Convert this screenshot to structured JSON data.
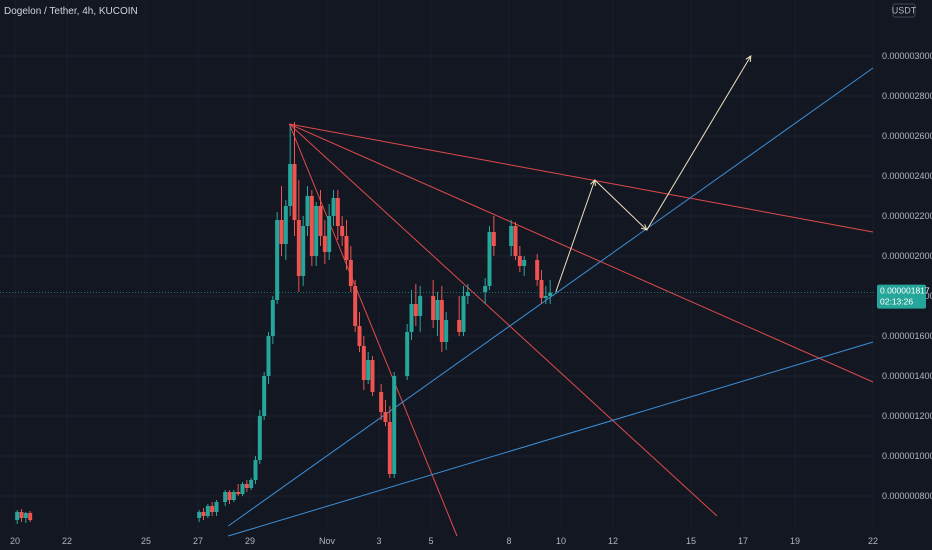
{
  "header": {
    "symbol_title": "Dogelon / Tether, 4h, KUCOIN",
    "currency_label": "USDT"
  },
  "price_badge": {
    "price": "0.000001817",
    "countdown": "02:13:26"
  },
  "colors": {
    "background": "#131722",
    "up": "#26a69a",
    "down": "#ef5350",
    "trend_red": "#e04a4a",
    "trend_blue": "#3d8fd6",
    "arrow": "#f0e2c0",
    "text": "#b2b5be",
    "badge": "#26a69a"
  },
  "chart_data": {
    "type": "candlestick",
    "title": "Dogelon / Tether, 4h, KUCOIN",
    "y_unit": "USDT",
    "ylim": [
      6.5e-07,
      3.15e-06
    ],
    "x_ticks": [
      "20",
      "22",
      "25",
      "27",
      "29",
      "Nov",
      "3",
      "5",
      "8",
      "10",
      "12",
      "15",
      "17",
      "19",
      "22"
    ],
    "y_ticks": [
      "0.000003000",
      "0.000002800",
      "0.000002600",
      "0.000002400",
      "0.000002200",
      "0.000002000",
      "0.000001800",
      "0.000001600",
      "0.000001400",
      "0.000001200",
      "0.000001000",
      "0.000000800"
    ],
    "last_price": 1.817e-06,
    "candles": [
      {
        "t": "Oct 20",
        "o": 6.8e-07,
        "h": 7.3e-07,
        "l": 6.6e-07,
        "c": 7.2e-07
      },
      {
        "t": "Oct 20",
        "o": 7.2e-07,
        "h": 7.35e-07,
        "l": 6.7e-07,
        "c": 6.9e-07
      },
      {
        "t": "Oct 20",
        "o": 6.9e-07,
        "h": 7.2e-07,
        "l": 6.65e-07,
        "c": 7.15e-07
      },
      {
        "t": "Oct 20",
        "o": 7.15e-07,
        "h": 7.25e-07,
        "l": 6.7e-07,
        "c": 6.8e-07
      },
      {
        "t": "Oct 27",
        "o": 6.9e-07,
        "h": 7.3e-07,
        "l": 6.7e-07,
        "c": 7.2e-07
      },
      {
        "t": "Oct 27",
        "o": 7.2e-07,
        "h": 7.4e-07,
        "l": 6.8e-07,
        "c": 7e-07
      },
      {
        "t": "Oct 27",
        "o": 7e-07,
        "h": 7.6e-07,
        "l": 6.9e-07,
        "c": 7.5e-07
      },
      {
        "t": "Oct 27",
        "o": 7.5e-07,
        "h": 7.7e-07,
        "l": 7e-07,
        "c": 7.2e-07
      },
      {
        "t": "Oct 27",
        "o": 7.2e-07,
        "h": 7.8e-07,
        "l": 7e-07,
        "c": 7.7e-07
      },
      {
        "t": "Oct 28",
        "o": 7.7e-07,
        "h": 8.3e-07,
        "l": 7.5e-07,
        "c": 8.2e-07
      },
      {
        "t": "Oct 28",
        "o": 8.2e-07,
        "h": 8.3e-07,
        "l": 7.6e-07,
        "c": 7.8e-07
      },
      {
        "t": "Oct 28",
        "o": 7.8e-07,
        "h": 8.3e-07,
        "l": 7.7e-07,
        "c": 8.2e-07
      },
      {
        "t": "Oct 28",
        "o": 8.2e-07,
        "h": 8.6e-07,
        "l": 8e-07,
        "c": 8.1e-07
      },
      {
        "t": "Oct 28",
        "o": 8.1e-07,
        "h": 8.7e-07,
        "l": 8e-07,
        "c": 8.6e-07
      },
      {
        "t": "Oct 28",
        "o": 8.6e-07,
        "h": 8.8e-07,
        "l": 8.2e-07,
        "c": 8.4e-07
      },
      {
        "t": "Oct 29",
        "o": 8.4e-07,
        "h": 8.9e-07,
        "l": 8.3e-07,
        "c": 8.8e-07
      },
      {
        "t": "Oct 29",
        "o": 8.8e-07,
        "h": 1e-06,
        "l": 8.6e-07,
        "c": 9.8e-07
      },
      {
        "t": "Oct 29",
        "o": 9.8e-07,
        "h": 1.23e-06,
        "l": 9.6e-07,
        "c": 1.2e-06
      },
      {
        "t": "Oct 29",
        "o": 1.2e-06,
        "h": 1.42e-06,
        "l": 1.18e-06,
        "c": 1.4e-06
      },
      {
        "t": "Oct 29",
        "o": 1.4e-06,
        "h": 1.62e-06,
        "l": 1.36e-06,
        "c": 1.6e-06
      },
      {
        "t": "Oct 29",
        "o": 1.6e-06,
        "h": 1.8e-06,
        "l": 1.56e-06,
        "c": 1.78e-06
      },
      {
        "t": "Oct 30",
        "o": 1.78e-06,
        "h": 2.22e-06,
        "l": 1.76e-06,
        "c": 2.18e-06
      },
      {
        "t": "Oct 30",
        "o": 2.18e-06,
        "h": 2.35e-06,
        "l": 2e-06,
        "c": 2.06e-06
      },
      {
        "t": "Oct 30",
        "o": 2.06e-06,
        "h": 2.28e-06,
        "l": 1.98e-06,
        "c": 2.25e-06
      },
      {
        "t": "Oct 30",
        "o": 2.25e-06,
        "h": 2.65e-06,
        "l": 2.2e-06,
        "c": 2.46e-06
      },
      {
        "t": "Oct 30",
        "o": 2.46e-06,
        "h": 2.67e-06,
        "l": 2.1e-06,
        "c": 2.18e-06
      },
      {
        "t": "Oct 30",
        "o": 2.18e-06,
        "h": 2.38e-06,
        "l": 1.82e-06,
        "c": 1.9e-06
      },
      {
        "t": "Oct 31",
        "o": 1.9e-06,
        "h": 2.2e-06,
        "l": 1.85e-06,
        "c": 2.15e-06
      },
      {
        "t": "Oct 31",
        "o": 2.15e-06,
        "h": 2.35e-06,
        "l": 2.1e-06,
        "c": 2.3e-06
      },
      {
        "t": "Oct 31",
        "o": 2.3e-06,
        "h": 2.33e-06,
        "l": 1.95e-06,
        "c": 2e-06
      },
      {
        "t": "Oct 31",
        "o": 2e-06,
        "h": 2.27e-06,
        "l": 1.95e-06,
        "c": 2.25e-06
      },
      {
        "t": "Oct 31",
        "o": 2.25e-06,
        "h": 2.33e-06,
        "l": 2.05e-06,
        "c": 2.1e-06
      },
      {
        "t": "Oct 31",
        "o": 2.1e-06,
        "h": 2.18e-06,
        "l": 1.96e-06,
        "c": 2.02e-06
      },
      {
        "t": "Nov 1",
        "o": 2.02e-06,
        "h": 2.26e-06,
        "l": 1.98e-06,
        "c": 2.2e-06
      },
      {
        "t": "Nov 1",
        "o": 2.2e-06,
        "h": 2.33e-06,
        "l": 2.15e-06,
        "c": 2.29e-06
      },
      {
        "t": "Nov 1",
        "o": 2.29e-06,
        "h": 2.33e-06,
        "l": 2.08e-06,
        "c": 2.15e-06
      },
      {
        "t": "Nov 1",
        "o": 2.15e-06,
        "h": 2.2e-06,
        "l": 2.05e-06,
        "c": 2.1e-06
      },
      {
        "t": "Nov 1",
        "o": 2.1e-06,
        "h": 2.18e-06,
        "l": 1.93e-06,
        "c": 1.98e-06
      },
      {
        "t": "Nov 1",
        "o": 1.98e-06,
        "h": 2.05e-06,
        "l": 1.82e-06,
        "c": 1.85e-06
      },
      {
        "t": "Nov 2",
        "o": 1.85e-06,
        "h": 1.88e-06,
        "l": 1.62e-06,
        "c": 1.65e-06
      },
      {
        "t": "Nov 2",
        "o": 1.65e-06,
        "h": 1.72e-06,
        "l": 1.52e-06,
        "c": 1.55e-06
      },
      {
        "t": "Nov 2",
        "o": 1.55e-06,
        "h": 1.6e-06,
        "l": 1.33e-06,
        "c": 1.38e-06
      },
      {
        "t": "Nov 2",
        "o": 1.38e-06,
        "h": 1.52e-06,
        "l": 1.36e-06,
        "c": 1.48e-06
      },
      {
        "t": "Nov 2",
        "o": 1.48e-06,
        "h": 1.5e-06,
        "l": 1.3e-06,
        "c": 1.32e-06
      },
      {
        "t": "Nov 3",
        "o": 1.32e-06,
        "h": 1.36e-06,
        "l": 1.18e-06,
        "c": 1.22e-06
      },
      {
        "t": "Nov 3",
        "o": 1.22e-06,
        "h": 1.28e-06,
        "l": 1.15e-06,
        "c": 1.17e-06
      },
      {
        "t": "Nov 3",
        "o": 1.17e-06,
        "h": 1.25e-06,
        "l": 8.9e-07,
        "c": 9.1e-07
      },
      {
        "t": "Nov 3",
        "o": 9.1e-07,
        "h": 1.42e-06,
        "l": 8.9e-07,
        "c": 1.4e-06
      },
      {
        "t": "Nov 4",
        "o": 1.4e-06,
        "h": 1.66e-06,
        "l": 1.38e-06,
        "c": 1.62e-06
      },
      {
        "t": "Nov 4",
        "o": 1.62e-06,
        "h": 1.83e-06,
        "l": 1.58e-06,
        "c": 1.76e-06
      },
      {
        "t": "Nov 4",
        "o": 1.76e-06,
        "h": 1.86e-06,
        "l": 1.65e-06,
        "c": 1.7e-06
      },
      {
        "t": "Nov 4",
        "o": 1.7e-06,
        "h": 1.85e-06,
        "l": 1.62e-06,
        "c": 1.8e-06
      },
      {
        "t": "Nov 5",
        "o": 1.8e-06,
        "h": 1.88e-06,
        "l": 1.64e-06,
        "c": 1.68e-06
      },
      {
        "t": "Nov 5",
        "o": 1.68e-06,
        "h": 1.82e-06,
        "l": 1.6e-06,
        "c": 1.78e-06
      },
      {
        "t": "Nov 5",
        "o": 1.78e-06,
        "h": 1.85e-06,
        "l": 1.52e-06,
        "c": 1.57e-06
      },
      {
        "t": "Nov 5",
        "o": 1.57e-06,
        "h": 1.72e-06,
        "l": 1.53e-06,
        "c": 1.68e-06
      },
      {
        "t": "Nov 6",
        "o": 1.68e-06,
        "h": 1.8e-06,
        "l": 1.6e-06,
        "c": 1.62e-06
      },
      {
        "t": "Nov 6",
        "o": 1.62e-06,
        "h": 1.85e-06,
        "l": 1.6e-06,
        "c": 1.8e-06
      },
      {
        "t": "Nov 6",
        "o": 1.8e-06,
        "h": 1.86e-06,
        "l": 1.76e-06,
        "c": 1.82e-06
      },
      {
        "t": "Nov 7",
        "o": 1.82e-06,
        "h": 1.89e-06,
        "l": 1.76e-06,
        "c": 1.85e-06
      },
      {
        "t": "Nov 7",
        "o": 1.85e-06,
        "h": 2.15e-06,
        "l": 1.83e-06,
        "c": 2.12e-06
      },
      {
        "t": "Nov 7",
        "o": 2.12e-06,
        "h": 2.2e-06,
        "l": 2e-06,
        "c": 2.05e-06
      },
      {
        "t": "Nov 8",
        "o": 2.05e-06,
        "h": 2.18e-06,
        "l": 2e-06,
        "c": 2.15e-06
      },
      {
        "t": "Nov 8",
        "o": 2.15e-06,
        "h": 2.17e-06,
        "l": 1.98e-06,
        "c": 2e-06
      },
      {
        "t": "Nov 8",
        "o": 2e-06,
        "h": 2.05e-06,
        "l": 1.92e-06,
        "c": 1.95e-06
      },
      {
        "t": "Nov 8",
        "o": 1.95e-06,
        "h": 2e-06,
        "l": 1.9e-06,
        "c": 1.98e-06
      },
      {
        "t": "Nov 9",
        "o": 1.98e-06,
        "h": 2.01e-06,
        "l": 1.85e-06,
        "c": 1.88e-06
      },
      {
        "t": "Nov 9",
        "o": 1.88e-06,
        "h": 1.93e-06,
        "l": 1.76e-06,
        "c": 1.79e-06
      },
      {
        "t": "Nov 9",
        "o": 1.79e-06,
        "h": 1.85e-06,
        "l": 1.76e-06,
        "c": 1.8e-06
      },
      {
        "t": "Nov 9",
        "o": 1.8e-06,
        "h": 1.88e-06,
        "l": 1.76e-06,
        "c": 1.817e-06
      }
    ],
    "trend_lines": [
      {
        "name": "resistance-upper",
        "color": "red",
        "p1": [
          "Oct 30",
          2.66e-06
        ],
        "p2": [
          "Nov 22",
          2.12e-06
        ]
      },
      {
        "name": "fan-1",
        "color": "red",
        "p1": [
          "Oct 30",
          2.66e-06
        ],
        "p2": [
          "Nov 22",
          1.37e-06
        ]
      },
      {
        "name": "fan-2",
        "color": "red",
        "p1": [
          "Oct 30",
          2.66e-06
        ],
        "p2": [
          "Nov 16",
          7e-07
        ]
      },
      {
        "name": "fan-3",
        "color": "red",
        "p1": [
          "Oct 30",
          2.66e-06
        ],
        "p2": [
          "Nov 6",
          6e-07
        ]
      },
      {
        "name": "support-upper",
        "color": "blue",
        "p1": [
          "Oct 28",
          6.5e-07
        ],
        "p2": [
          "Nov 22",
          2.94e-06
        ]
      },
      {
        "name": "support-lower",
        "color": "blue",
        "p1": [
          "Oct 28",
          6e-07
        ],
        "p2": [
          "Nov 22",
          1.57e-06
        ]
      }
    ],
    "projection_path": [
      [
        "Nov 9",
        1.82e-06
      ],
      [
        "Nov 11",
        2.38e-06
      ],
      [
        "Nov 13",
        2.13e-06
      ],
      [
        "Nov 17",
        3e-06
      ]
    ]
  }
}
